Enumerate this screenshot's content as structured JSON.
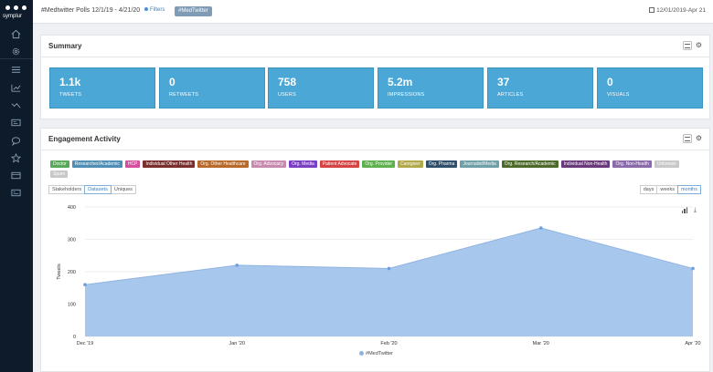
{
  "sidebar": {
    "brand": "symplur",
    "icons": [
      "home-icon",
      "gear-icon",
      "list-icon",
      "trend-up-icon",
      "trend-down-icon",
      "id-card-icon",
      "chat-icon",
      "star-icon",
      "card-icon",
      "card-alt-icon"
    ]
  },
  "header": {
    "title": "#Medtwitter Polls 12/1/19 - 4/21/20",
    "filters_label": "Filters",
    "tag": "#MedTwitter",
    "date_range": "12/01/2019-Apr 21"
  },
  "summary": {
    "title": "Summary",
    "stats": [
      {
        "value": "1.1k",
        "label": "TWEETS"
      },
      {
        "value": "0",
        "label": "RETWEETS"
      },
      {
        "value": "758",
        "label": "USERS"
      },
      {
        "value": "5.2m",
        "label": "IMPRESSIONS"
      },
      {
        "value": "37",
        "label": "ARTICLES"
      },
      {
        "value": "0",
        "label": "VISUALS"
      }
    ]
  },
  "engagement": {
    "title": "Engagement Activity",
    "chips": [
      {
        "label": "Doctor",
        "color": "#5ba85a"
      },
      {
        "label": "Researcher/Academic",
        "color": "#4f8fb5"
      },
      {
        "label": "HCP",
        "color": "#d64f9e"
      },
      {
        "label": "Individual Other Health",
        "color": "#7a2e2e"
      },
      {
        "label": "Org. Other Healthcare",
        "color": "#b86a2a"
      },
      {
        "label": "Org. Advocacy",
        "color": "#c88bb0"
      },
      {
        "label": "Org. Media",
        "color": "#7b3fc4"
      },
      {
        "label": "Patient Advocate",
        "color": "#d64545"
      },
      {
        "label": "Org. Provider",
        "color": "#5fb04f"
      },
      {
        "label": "Caregiver",
        "color": "#b2a94a"
      },
      {
        "label": "Org. Pharma",
        "color": "#2f4f6a"
      },
      {
        "label": "Journalist/Media",
        "color": "#6fa0a8"
      },
      {
        "label": "Org. Research/Academic",
        "color": "#4d6a2a"
      },
      {
        "label": "Individual Non-Health",
        "color": "#6a3a7a"
      },
      {
        "label": "Org. Non-Health",
        "color": "#8a6aa8"
      },
      {
        "label": "Unknown",
        "color": "#c8c8c8"
      },
      {
        "label": "Spam",
        "color": "#c8c8c8"
      }
    ],
    "modes": [
      {
        "label": "Stakeholders",
        "active": false
      },
      {
        "label": "Datasets",
        "active": true
      },
      {
        "label": "Uniques",
        "active": false
      }
    ],
    "periods": [
      {
        "label": "days",
        "active": false
      },
      {
        "label": "weeks",
        "active": false
      },
      {
        "label": "months",
        "active": true
      }
    ]
  },
  "chart_data": {
    "type": "area",
    "categories": [
      "Dec '19",
      "Jan '20",
      "Feb '20",
      "Mar '20",
      "Apr '20"
    ],
    "series": [
      {
        "name": "#MedTwitter",
        "values": [
          160,
          220,
          210,
          335,
          210
        ],
        "color": "#8fb3e0"
      }
    ],
    "ylabel": "Tweets",
    "xlabel": "",
    "ylim": [
      0,
      400
    ],
    "yticks": [
      0,
      100,
      200,
      300,
      400
    ],
    "grid": true,
    "legend": "bottom"
  }
}
